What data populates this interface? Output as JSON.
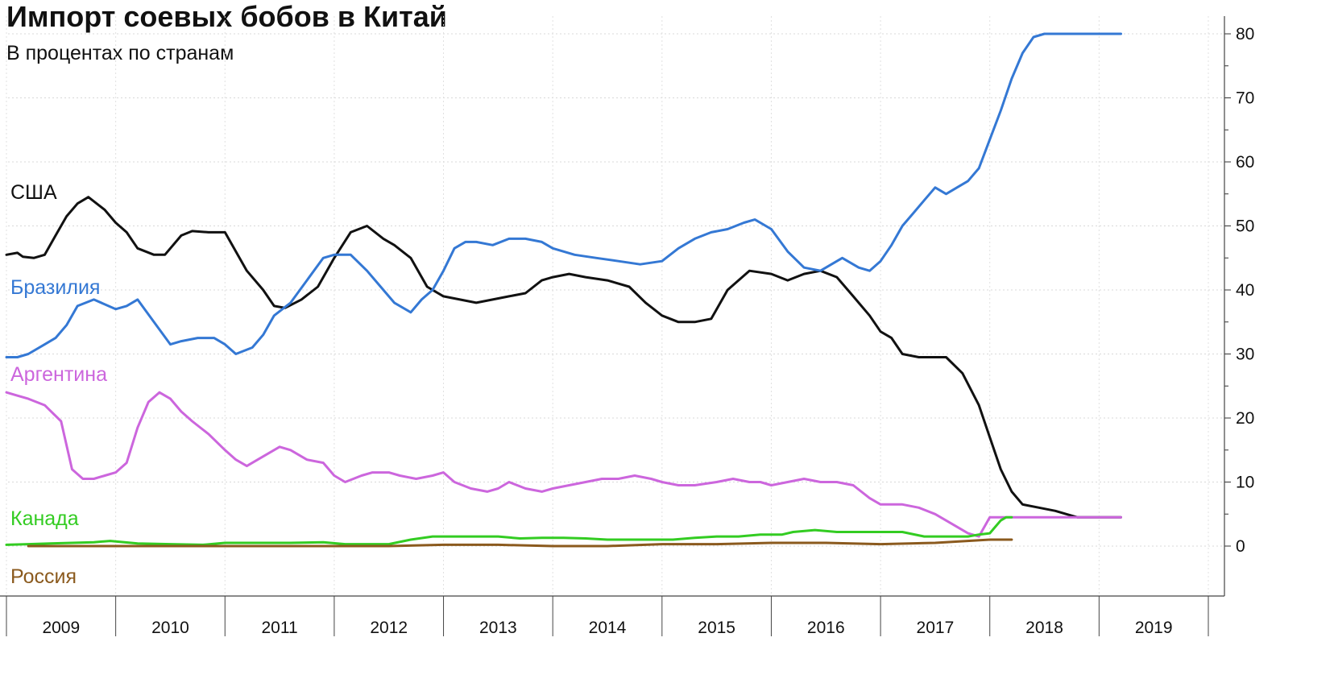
{
  "chart_data": {
    "type": "line",
    "title": "Импорт соевых бобов в Китай",
    "subtitle": "В процентах по странам",
    "xlabel": "",
    "ylabel": "",
    "ylim": [
      -8,
      82
    ],
    "xlim": [
      2009.0,
      2020.0
    ],
    "y_ticks": [
      "0",
      "10",
      "20",
      "30",
      "40",
      "50",
      "60",
      "70",
      "80"
    ],
    "x_ticks": [
      "2009",
      "2010",
      "2011",
      "2012",
      "2013",
      "2014",
      "2015",
      "2016",
      "2017",
      "2018",
      "2019"
    ],
    "grid": true,
    "y_axis_position": "right",
    "colors": {
      "США": "#111111",
      "Бразилия": "#3478d4",
      "Аргентина": "#cc66dd",
      "Канада": "#33cc22",
      "Россия": "#8b5a1e"
    },
    "series": [
      {
        "name": "США",
        "x": [
          2009.0,
          2009.1,
          2009.15,
          2009.25,
          2009.35,
          2009.45,
          2009.55,
          2009.65,
          2009.75,
          2009.9,
          2010.0,
          2010.1,
          2010.2,
          2010.35,
          2010.45,
          2010.6,
          2010.7,
          2010.85,
          2011.0,
          2011.1,
          2011.2,
          2011.35,
          2011.45,
          2011.55,
          2011.7,
          2011.85,
          2012.0,
          2012.15,
          2012.3,
          2012.45,
          2012.55,
          2012.7,
          2012.85,
          2013.0,
          2013.15,
          2013.3,
          2013.45,
          2013.6,
          2013.75,
          2013.9,
          2014.0,
          2014.15,
          2014.3,
          2014.5,
          2014.7,
          2014.85,
          2015.0,
          2015.15,
          2015.3,
          2015.45,
          2015.6,
          2015.8,
          2016.0,
          2016.15,
          2016.3,
          2016.45,
          2016.6,
          2016.75,
          2016.9,
          2017.0,
          2017.1,
          2017.2,
          2017.35,
          2017.5,
          2017.6,
          2017.75,
          2017.9,
          2018.0,
          2018.1,
          2018.2,
          2018.3,
          2018.45,
          2018.6,
          2018.7,
          2018.8,
          2018.9,
          2019.0,
          2019.1,
          2019.2
        ],
        "values": [
          45.5,
          45.8,
          45.2,
          45.0,
          45.5,
          48.5,
          51.5,
          53.5,
          54.5,
          52.5,
          50.5,
          49.0,
          46.5,
          45.5,
          45.5,
          48.5,
          49.2,
          49.0,
          49.0,
          46.0,
          43.0,
          40.0,
          37.5,
          37.2,
          38.5,
          40.5,
          45.0,
          49.0,
          50.0,
          48.0,
          47.0,
          45.0,
          40.5,
          39.0,
          38.5,
          38.0,
          38.5,
          39.0,
          39.5,
          41.5,
          42.0,
          42.5,
          42.0,
          41.5,
          40.5,
          38.0,
          36.0,
          35.0,
          35.0,
          35.5,
          40.0,
          43.0,
          42.5,
          41.5,
          42.5,
          43.0,
          42.0,
          39.0,
          36.0,
          33.5,
          32.5,
          30.0,
          29.5,
          29.5,
          29.5,
          27.0,
          22.0,
          17.0,
          12.0,
          8.5,
          6.5,
          6.0,
          5.5,
          5.0,
          4.5,
          4.5,
          4.5,
          4.5,
          4.5
        ]
      },
      {
        "name": "Бразилия",
        "x": [
          2009.0,
          2009.1,
          2009.2,
          2009.35,
          2009.45,
          2009.55,
          2009.65,
          2009.8,
          2010.0,
          2010.1,
          2010.2,
          2010.35,
          2010.5,
          2010.6,
          2010.75,
          2010.9,
          2011.0,
          2011.1,
          2011.25,
          2011.35,
          2011.45,
          2011.6,
          2011.75,
          2011.9,
          2012.0,
          2012.15,
          2012.3,
          2012.4,
          2012.55,
          2012.7,
          2012.8,
          2012.9,
          2013.0,
          2013.1,
          2013.2,
          2013.3,
          2013.45,
          2013.6,
          2013.75,
          2013.9,
          2014.0,
          2014.2,
          2014.4,
          2014.6,
          2014.8,
          2015.0,
          2015.15,
          2015.3,
          2015.45,
          2015.6,
          2015.75,
          2015.85,
          2016.0,
          2016.15,
          2016.3,
          2016.45,
          2016.55,
          2016.65,
          2016.8,
          2016.9,
          2017.0,
          2017.1,
          2017.2,
          2017.3,
          2017.4,
          2017.5,
          2017.6,
          2017.7,
          2017.8,
          2017.9,
          2018.0,
          2018.1,
          2018.2,
          2018.3,
          2018.4,
          2018.5,
          2018.6,
          2018.7,
          2018.8,
          2018.9,
          2019.0,
          2019.1,
          2019.2
        ],
        "values": [
          29.5,
          29.5,
          30.0,
          31.5,
          32.5,
          34.5,
          37.5,
          38.5,
          37.0,
          37.5,
          38.5,
          35.0,
          31.5,
          32.0,
          32.5,
          32.5,
          31.5,
          30.0,
          31.0,
          33.0,
          36.0,
          38.0,
          41.5,
          45.0,
          45.5,
          45.5,
          43.0,
          41.0,
          38.0,
          36.5,
          38.5,
          40.0,
          43.0,
          46.5,
          47.5,
          47.5,
          47.0,
          48.0,
          48.0,
          47.5,
          46.5,
          45.5,
          45.0,
          44.5,
          44.0,
          44.5,
          46.5,
          48.0,
          49.0,
          49.5,
          50.5,
          51.0,
          49.5,
          46.0,
          43.5,
          43.0,
          44.0,
          45.0,
          43.5,
          43.0,
          44.5,
          47.0,
          50.0,
          52.0,
          54.0,
          56.0,
          55.0,
          56.0,
          57.0,
          59.0,
          63.5,
          68.0,
          73.0,
          77.0,
          79.5,
          80.0,
          80.0,
          80.0,
          80.0,
          80.0,
          80.0,
          80.0,
          80.0
        ]
      },
      {
        "name": "Аргентина",
        "x": [
          2009.0,
          2009.1,
          2009.2,
          2009.35,
          2009.5,
          2009.6,
          2009.7,
          2009.8,
          2009.9,
          2010.0,
          2010.1,
          2010.2,
          2010.3,
          2010.4,
          2010.5,
          2010.6,
          2010.7,
          2010.85,
          2011.0,
          2011.1,
          2011.2,
          2011.35,
          2011.5,
          2011.6,
          2011.75,
          2011.9,
          2012.0,
          2012.1,
          2012.25,
          2012.35,
          2012.5,
          2012.6,
          2012.75,
          2012.9,
          2013.0,
          2013.1,
          2013.25,
          2013.4,
          2013.5,
          2013.6,
          2013.75,
          2013.9,
          2014.0,
          2014.15,
          2014.3,
          2014.45,
          2014.6,
          2014.75,
          2014.9,
          2015.0,
          2015.15,
          2015.3,
          2015.5,
          2015.65,
          2015.8,
          2015.9,
          2016.0,
          2016.15,
          2016.3,
          2016.45,
          2016.6,
          2016.75,
          2016.9,
          2017.0,
          2017.1,
          2017.2,
          2017.35,
          2017.5,
          2017.65,
          2017.8,
          2017.9,
          2018.0,
          2018.1,
          2018.2,
          2018.3,
          2018.4,
          2018.5,
          2018.6,
          2018.7,
          2018.8,
          2018.9,
          2019.0,
          2019.1,
          2019.2
        ],
        "values": [
          24.0,
          23.5,
          23.0,
          22.0,
          19.5,
          12.0,
          10.5,
          10.5,
          11.0,
          11.5,
          13.0,
          18.5,
          22.5,
          24.0,
          23.0,
          21.0,
          19.5,
          17.5,
          15.0,
          13.5,
          12.5,
          14.0,
          15.5,
          15.0,
          13.5,
          13.0,
          11.0,
          10.0,
          11.0,
          11.5,
          11.5,
          11.0,
          10.5,
          11.0,
          11.5,
          10.0,
          9.0,
          8.5,
          9.0,
          10.0,
          9.0,
          8.5,
          9.0,
          9.5,
          10.0,
          10.5,
          10.5,
          11.0,
          10.5,
          10.0,
          9.5,
          9.5,
          10.0,
          10.5,
          10.0,
          10.0,
          9.5,
          10.0,
          10.5,
          10.0,
          10.0,
          9.5,
          7.5,
          6.5,
          6.5,
          6.5,
          6.0,
          5.0,
          3.5,
          2.0,
          1.5,
          4.5,
          4.5,
          4.5,
          4.5,
          4.5,
          4.5,
          4.5,
          4.5,
          4.5,
          4.5,
          4.5,
          4.5,
          4.5
        ]
      },
      {
        "name": "Канада",
        "x": [
          2009.0,
          2009.2,
          2009.4,
          2009.6,
          2009.8,
          2009.95,
          2010.2,
          2010.5,
          2010.8,
          2011.0,
          2011.3,
          2011.6,
          2011.9,
          2012.1,
          2012.3,
          2012.5,
          2012.7,
          2012.9,
          2013.1,
          2013.3,
          2013.5,
          2013.7,
          2013.9,
          2014.1,
          2014.3,
          2014.5,
          2014.7,
          2014.9,
          2015.1,
          2015.3,
          2015.5,
          2015.7,
          2015.9,
          2016.1,
          2016.2,
          2016.4,
          2016.6,
          2016.8,
          2017.0,
          2017.2,
          2017.4,
          2017.6,
          2017.8,
          2017.9,
          2018.0,
          2018.05,
          2018.1,
          2018.15,
          2018.2
        ],
        "values": [
          0.2,
          0.3,
          0.4,
          0.5,
          0.6,
          0.8,
          0.4,
          0.3,
          0.2,
          0.5,
          0.5,
          0.5,
          0.6,
          0.3,
          0.3,
          0.3,
          1.0,
          1.5,
          1.5,
          1.5,
          1.5,
          1.2,
          1.3,
          1.3,
          1.2,
          1.0,
          1.0,
          1.0,
          1.0,
          1.3,
          1.5,
          1.5,
          1.8,
          1.8,
          2.2,
          2.5,
          2.2,
          2.2,
          2.2,
          2.2,
          1.5,
          1.5,
          1.5,
          1.8,
          2.0,
          3.0,
          4.0,
          4.5,
          4.5
        ]
      },
      {
        "name": "Россия",
        "x": [
          2009.2,
          2009.6,
          2010.0,
          2010.5,
          2011.0,
          2011.5,
          2012.0,
          2012.5,
          2013.0,
          2013.5,
          2014.0,
          2014.5,
          2015.0,
          2015.5,
          2016.0,
          2016.5,
          2017.0,
          2017.5,
          2018.0,
          2018.1,
          2018.2
        ],
        "values": [
          0.0,
          0.0,
          0.0,
          0.0,
          0.0,
          0.0,
          0.0,
          0.0,
          0.2,
          0.2,
          0.0,
          0.0,
          0.3,
          0.3,
          0.5,
          0.5,
          0.3,
          0.5,
          1.0,
          1.0,
          1.0
        ]
      }
    ]
  }
}
